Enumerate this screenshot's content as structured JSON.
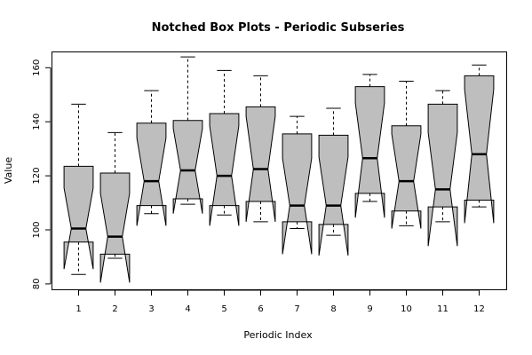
{
  "chart_data": {
    "type": "boxplot",
    "notched": true,
    "title": "Notched Box Plots - Periodic Subseries",
    "xlabel": "Periodic Index",
    "ylabel": "Value",
    "ylim": [
      78,
      166
    ],
    "yticks": [
      80,
      100,
      120,
      140,
      160
    ],
    "categories": [
      "1",
      "2",
      "3",
      "4",
      "5",
      "6",
      "7",
      "8",
      "9",
      "10",
      "11",
      "12"
    ],
    "box_fill": "#bebebe",
    "series": [
      {
        "category": "1",
        "min": 83.5,
        "q1": 95.5,
        "median": 100.5,
        "q3": 123.5,
        "max": 146.5,
        "notch_low": 85.5,
        "notch_high": 115.5
      },
      {
        "category": "2",
        "min": 89.5,
        "q1": 91.0,
        "median": 97.5,
        "q3": 121.0,
        "max": 136.0,
        "notch_low": 80.5,
        "notch_high": 113.5
      },
      {
        "category": "3",
        "min": 106.0,
        "q1": 109.0,
        "median": 118.0,
        "q3": 139.5,
        "max": 151.5,
        "notch_low": 101.5,
        "notch_high": 134.0
      },
      {
        "category": "4",
        "min": 109.5,
        "q1": 111.5,
        "median": 122.0,
        "q3": 140.5,
        "max": 164.0,
        "notch_low": 106.0,
        "notch_high": 137.5
      },
      {
        "category": "5",
        "min": 105.5,
        "q1": 109.0,
        "median": 120.0,
        "q3": 143.0,
        "max": 159.0,
        "notch_low": 101.5,
        "notch_high": 138.5
      },
      {
        "category": "6",
        "min": 103.0,
        "q1": 110.5,
        "median": 122.5,
        "q3": 145.5,
        "max": 157.0,
        "notch_low": 103.0,
        "notch_high": 142.0
      },
      {
        "category": "7",
        "min": 100.5,
        "q1": 103.0,
        "median": 109.0,
        "q3": 135.5,
        "max": 142.0,
        "notch_low": 91.0,
        "notch_high": 126.5
      },
      {
        "category": "8",
        "min": 98.0,
        "q1": 102.0,
        "median": 109.0,
        "q3": 135.0,
        "max": 145.0,
        "notch_low": 90.5,
        "notch_high": 127.0
      },
      {
        "category": "9",
        "min": 110.5,
        "q1": 113.5,
        "median": 126.5,
        "q3": 153.0,
        "max": 157.5,
        "notch_low": 104.5,
        "notch_high": 147.0
      },
      {
        "category": "10",
        "min": 101.5,
        "q1": 107.0,
        "median": 118.0,
        "q3": 138.5,
        "max": 155.0,
        "notch_low": 100.5,
        "notch_high": 135.5
      },
      {
        "category": "11",
        "min": 103.0,
        "q1": 108.5,
        "median": 115.0,
        "q3": 146.5,
        "max": 151.5,
        "notch_low": 94.0,
        "notch_high": 136.0
      },
      {
        "category": "12",
        "min": 108.5,
        "q1": 111.0,
        "median": 128.0,
        "q3": 157.0,
        "max": 161.0,
        "notch_low": 102.5,
        "notch_high": 152.0
      }
    ]
  }
}
